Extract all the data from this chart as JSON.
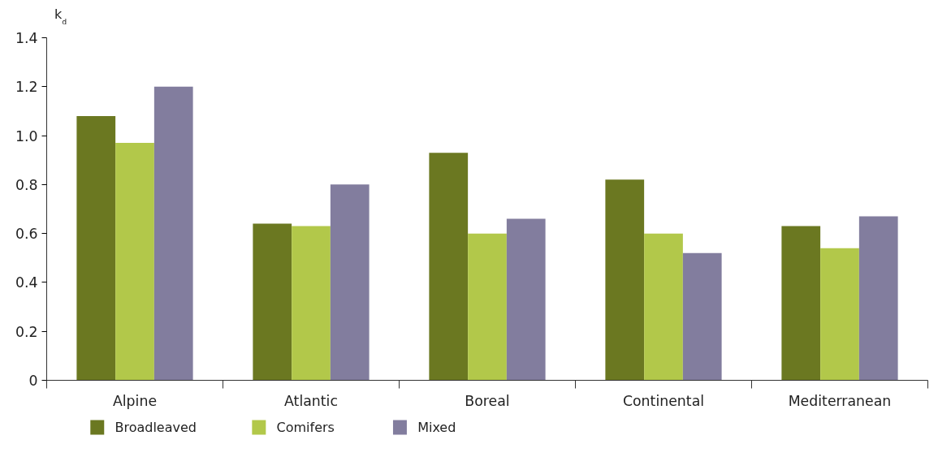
{
  "chart_data": {
    "type": "bar",
    "ylabel": "k$_{d}$",
    "categories": [
      "Alpine",
      "Atlantic",
      "Boreal",
      "Continental",
      "Mediterranean"
    ],
    "series": [
      {
        "name": "Broadleaved",
        "color": "#6b7821",
        "values": [
          1.08,
          0.64,
          0.93,
          0.82,
          0.63
        ]
      },
      {
        "name": "Comifers",
        "color": "#b2c84a",
        "values": [
          0.97,
          0.63,
          0.6,
          0.6,
          0.54
        ]
      },
      {
        "name": "Mixed",
        "color": "#827d9e",
        "values": [
          1.2,
          0.8,
          0.66,
          0.52,
          0.67
        ]
      }
    ],
    "ylim": [
      0,
      1.4
    ],
    "yticks": [
      0,
      0.2,
      0.4,
      0.6,
      0.8,
      {
        "value": 1,
        "label": "1.0"
      },
      1.2,
      1.4
    ],
    "grid": false,
    "legend": "bottom"
  }
}
